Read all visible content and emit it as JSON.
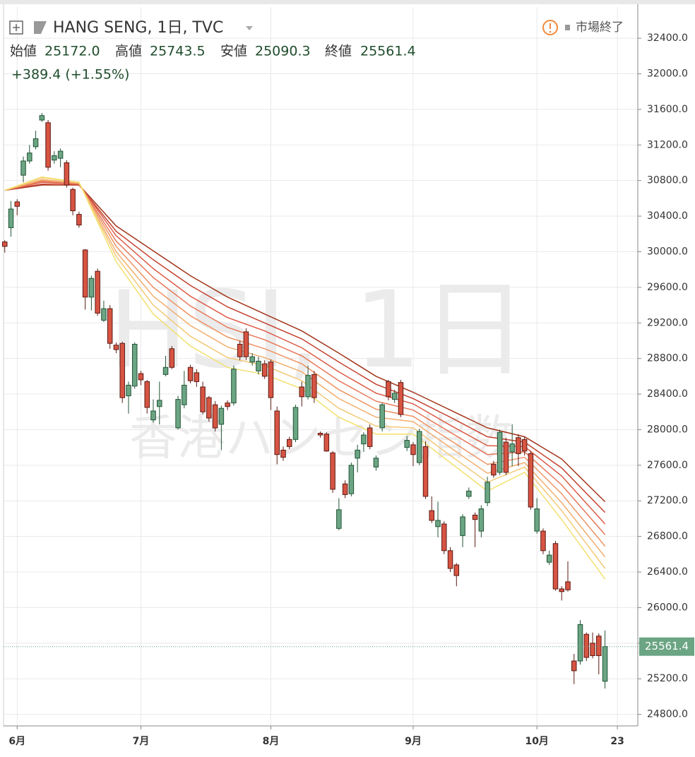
{
  "chart_data": {
    "type": "candlestick",
    "title": "HANG SENG, 1日, TVC",
    "status": "市場終了",
    "watermark": "HSI, 1日",
    "watermark_sub": "香港ハンセン指数",
    "ohlc_names": [
      "始値",
      "高値",
      "安値",
      "終値"
    ],
    "ohlc_labels": [
      "25172.0",
      "25743.5",
      "25090.3",
      "25561.4"
    ],
    "change_label": "+389.4 (+1.55%)",
    "up_color": "#6ba583",
    "up_border": "#225437",
    "down_color": "#d75442",
    "down_border": "#5b1a13",
    "last_color": "#6ba583",
    "grid": true,
    "xlim": [
      -0.2,
      102.3
    ],
    "xticks": [
      {
        "value": 2,
        "label": "6月"
      },
      {
        "value": 22,
        "label": "7月"
      },
      {
        "value": 43,
        "label": "8月"
      },
      {
        "value": 66,
        "label": "9月"
      },
      {
        "value": 86,
        "label": "10月"
      },
      {
        "value": 99,
        "label": "23"
      }
    ],
    "ylim": [
      24670,
      32750
    ],
    "yticks": [
      {
        "value": 24800,
        "label": "24800.0"
      },
      {
        "value": 25200,
        "label": "25200.0"
      },
      {
        "value": 25600,
        "label": "25600.0"
      },
      {
        "value": 26000,
        "label": "26000.0"
      },
      {
        "value": 26400,
        "label": "26400.0"
      },
      {
        "value": 26800,
        "label": "26800.0"
      },
      {
        "value": 27200,
        "label": "27200.0"
      },
      {
        "value": 27600,
        "label": "27600.0"
      },
      {
        "value": 28000,
        "label": "28000.0"
      },
      {
        "value": 28400,
        "label": "28400.0"
      },
      {
        "value": 28800,
        "label": "28800.0"
      },
      {
        "value": 29200,
        "label": "29200.0"
      },
      {
        "value": 29600,
        "label": "29600.0"
      },
      {
        "value": 30000,
        "label": "30000.0"
      },
      {
        "value": 30400,
        "label": "30400.0"
      },
      {
        "value": 30800,
        "label": "30800.0"
      },
      {
        "value": 31200,
        "label": "31200.0"
      },
      {
        "value": 31600,
        "label": "31600.0"
      },
      {
        "value": 32000,
        "label": "32000.0"
      },
      {
        "value": 32400,
        "label": "32400.0"
      }
    ],
    "open": [
      30110,
      30270,
      30560,
      30860,
      31020,
      31180,
      31480,
      31450,
      31030,
      31050,
      31000,
      30700,
      30420,
      30020,
      29490,
      29780,
      29230,
      29360,
      28950,
      28970,
      28380,
      28490,
      28630,
      28540,
      28110,
      28260,
      28620,
      28910,
      28020,
      28280,
      28700,
      28640,
      28480,
      28360,
      28280,
      28060,
      28300,
      28300,
      28960,
      29100,
      28760,
      28660,
      28740,
      28760,
      28210,
      27770,
      27890,
      27890,
      28480,
      28370,
      28620,
      27960,
      27950,
      27740,
      26890,
      27390,
      27280,
      27680,
      27840,
      28020,
      27580,
      28020,
      28540,
      28340,
      28530,
      27800,
      27830,
      27630,
      27810,
      27090,
      26910,
      26940,
      26640,
      26480,
      26810,
      27250,
      27040,
      26860,
      27180,
      27610,
      27520,
      27860,
      27750,
      27910,
      27890,
      27730,
      26860,
      26860,
      26510,
      26720,
      26210,
      26290,
      25400,
      25400,
      25700,
      25600,
      25680,
      25172
    ],
    "high": [
      30130,
      30570,
      30590,
      31070,
      31200,
      31360,
      31560,
      31480,
      31130,
      31160,
      31030,
      30720,
      30450,
      30030,
      29730,
      29810,
      29450,
      29400,
      28980,
      28990,
      28540,
      28980,
      28660,
      28560,
      28340,
      28540,
      28830,
      28940,
      28380,
      28660,
      28730,
      28680,
      28540,
      28380,
      28320,
      28270,
      28330,
      28720,
      29000,
      29140,
      28860,
      28820,
      28780,
      28790,
      28260,
      27810,
      27920,
      28280,
      28540,
      28720,
      28660,
      27980,
      27970,
      27760,
      27230,
      27430,
      27630,
      27830,
      27970,
      28060,
      27710,
      28300,
      28560,
      28450,
      28560,
      27930,
      27860,
      28010,
      27870,
      27250,
      27190,
      26970,
      26680,
      26500,
      27050,
      27350,
      27070,
      27150,
      27470,
      27650,
      28000,
      27910,
      28060,
      27950,
      27920,
      27760,
      27230,
      26890,
      26640,
      26750,
      26240,
      26520,
      25480,
      25860,
      25720,
      25720,
      25710,
      25743.5
    ],
    "low": [
      29990,
      30170,
      30410,
      30780,
      30990,
      31150,
      31460,
      30910,
      30990,
      30950,
      30720,
      30410,
      30270,
      29350,
      29340,
      29280,
      29210,
      28910,
      28860,
      28300,
      28180,
      28460,
      28500,
      28180,
      28080,
      28060,
      28600,
      28680,
      28000,
      28240,
      28520,
      28480,
      28170,
      28090,
      27980,
      27770,
      28220,
      28270,
      28780,
      28780,
      28720,
      28620,
      28570,
      28220,
      27610,
      27650,
      27780,
      27860,
      28260,
      28340,
      28300,
      27910,
      27750,
      27290,
      26870,
      27230,
      27250,
      27520,
      27750,
      27780,
      27540,
      27980,
      28330,
      28300,
      28140,
      27760,
      27590,
      27600,
      27220,
      26950,
      26790,
      26600,
      26400,
      26240,
      26680,
      27220,
      26680,
      26790,
      27140,
      27460,
      27490,
      27490,
      27590,
      27590,
      27710,
      27100,
      26830,
      26600,
      26480,
      26190,
      26080,
      26180,
      25140,
      25360,
      25400,
      25430,
      25250,
      25090.3
    ],
    "close": [
      30060,
      30480,
      30510,
      31020,
      31110,
      31270,
      31530,
      30950,
      31080,
      31130,
      30750,
      30460,
      30300,
      29490,
      29700,
      29310,
      29360,
      28970,
      28900,
      28360,
      28500,
      28960,
      28560,
      28250,
      28210,
      28330,
      28700,
      28700,
      28340,
      28500,
      28550,
      28540,
      28200,
      28130,
      28020,
      28240,
      28260,
      28680,
      28820,
      28820,
      28820,
      28770,
      28600,
      28360,
      27720,
      27690,
      27810,
      28250,
      28370,
      28610,
      28360,
      27940,
      27760,
      27330,
      27100,
      27270,
      27600,
      27770,
      27940,
      27810,
      27680,
      28280,
      28370,
      28410,
      28170,
      27880,
      27720,
      27980,
      27250,
      26980,
      26980,
      26640,
      26440,
      26360,
      27020,
      27310,
      26990,
      27110,
      27410,
      27490,
      27970,
      27520,
      27840,
      27730,
      27760,
      27130,
      27110,
      26640,
      26590,
      26210,
      26180,
      26200,
      25290,
      25810,
      25440,
      25460,
      25460,
      25561.4
    ],
    "ribbon_x": [
      0,
      6,
      12,
      18,
      24,
      30,
      36,
      42,
      48,
      54,
      60,
      66,
      72,
      78,
      84,
      90,
      97
    ],
    "ribbon": [
      {
        "color": "#a2351a",
        "values": [
          30690,
          30750,
          30750,
          30290,
          30010,
          29730,
          29490,
          29300,
          29110,
          28860,
          28600,
          28420,
          28220,
          28020,
          27920,
          27670,
          27190
        ]
      },
      {
        "color": "#c4412e",
        "values": [
          30690,
          30760,
          30750,
          30230,
          29910,
          29620,
          29380,
          29200,
          29020,
          28760,
          28510,
          28350,
          28140,
          27920,
          27860,
          27570,
          27070
        ]
      },
      {
        "color": "#dc5a45",
        "values": [
          30690,
          30780,
          30760,
          30180,
          29810,
          29500,
          29260,
          29110,
          28920,
          28650,
          28410,
          28290,
          28050,
          27820,
          27810,
          27480,
          26940
        ]
      },
      {
        "color": "#e87758",
        "values": [
          30690,
          30790,
          30760,
          30120,
          29710,
          29390,
          29150,
          29010,
          28830,
          28550,
          28320,
          28220,
          27970,
          27720,
          27750,
          27380,
          26820
        ]
      },
      {
        "color": "#ee9363",
        "values": [
          30690,
          30800,
          30770,
          30060,
          29600,
          29280,
          29040,
          28910,
          28740,
          28450,
          28230,
          28150,
          27880,
          27610,
          27690,
          27280,
          26690
        ]
      },
      {
        "color": "#f2ae6e",
        "values": [
          30690,
          30810,
          30770,
          30000,
          29500,
          29170,
          28930,
          28810,
          28650,
          28350,
          28140,
          28090,
          27800,
          27510,
          27630,
          27180,
          26570
        ]
      },
      {
        "color": "#f4c977",
        "values": [
          30690,
          30830,
          30780,
          29950,
          29400,
          29050,
          28810,
          28720,
          28550,
          28240,
          28040,
          28020,
          27710,
          27410,
          27580,
          27090,
          26440
        ]
      },
      {
        "color": "#f3e06e",
        "values": [
          30690,
          30840,
          30780,
          29890,
          29300,
          28940,
          28700,
          28620,
          28460,
          28140,
          27950,
          27950,
          27630,
          27310,
          27520,
          26990,
          26320
        ]
      }
    ]
  }
}
